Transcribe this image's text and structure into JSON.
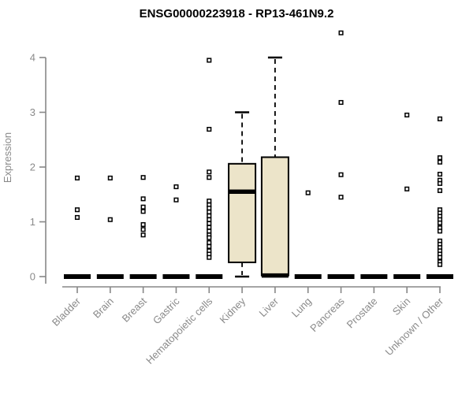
{
  "chart_data": {
    "type": "boxplot",
    "title": "ENSG00000223918 - RP13-461N9.2",
    "ylabel": "Expression",
    "xlabel": "",
    "ylim": [
      0,
      4
    ],
    "yticks": [
      0,
      1,
      2,
      3,
      4
    ],
    "grid": false,
    "legend": "none",
    "categories": [
      "Bladder",
      "Brain",
      "Breast",
      "Gastric",
      "Hematopoietic cells",
      "Kidney",
      "Liver",
      "Lung",
      "Pancreas",
      "Prostate",
      "Skin",
      "Unknown / Other"
    ],
    "boxes": [
      {
        "category": "Bladder",
        "q1": 0,
        "median": 0,
        "q3": 0,
        "whisker_low": 0,
        "whisker_high": 0,
        "outliers": [
          1.8,
          1.22,
          1.08
        ]
      },
      {
        "category": "Brain",
        "q1": 0,
        "median": 0,
        "q3": 0,
        "whisker_low": 0,
        "whisker_high": 0,
        "outliers": [
          1.8,
          1.04
        ]
      },
      {
        "category": "Breast",
        "q1": 0,
        "median": 0,
        "q3": 0,
        "whisker_low": 0,
        "whisker_high": 0,
        "outliers": [
          1.81,
          1.42,
          1.27,
          1.19,
          0.95,
          0.86,
          0.76
        ]
      },
      {
        "category": "Gastric",
        "q1": 0,
        "median": 0,
        "q3": 0,
        "whisker_low": 0,
        "whisker_high": 0,
        "outliers": [
          1.64,
          1.4
        ]
      },
      {
        "category": "Hematopoietic cells",
        "q1": 0,
        "median": 0,
        "q3": 0,
        "whisker_low": 0,
        "whisker_high": 0,
        "outliers": [
          3.95,
          2.69,
          1.91,
          1.81,
          1.38,
          1.31,
          1.25,
          1.18,
          1.11,
          1.04,
          0.97,
          0.9,
          0.83,
          0.76,
          0.71,
          0.62,
          0.55,
          0.47,
          0.41,
          0.35
        ]
      },
      {
        "category": "Kidney",
        "q1": 0.26,
        "median": 1.55,
        "q3": 2.06,
        "whisker_low": 0,
        "whisker_high": 3.0,
        "outliers": []
      },
      {
        "category": "Liver",
        "q1": 0.02,
        "median": 0.02,
        "q3": 2.18,
        "whisker_low": 0.02,
        "whisker_high": 4.0,
        "outliers": []
      },
      {
        "category": "Lung",
        "q1": 0,
        "median": 0,
        "q3": 0,
        "whisker_low": 0,
        "whisker_high": 0,
        "outliers": [
          1.53
        ]
      },
      {
        "category": "Pancreas",
        "q1": 0,
        "median": 0,
        "q3": 0,
        "whisker_low": 0,
        "whisker_high": 0,
        "outliers": [
          4.45,
          3.18,
          1.86,
          1.45
        ]
      },
      {
        "category": "Prostate",
        "q1": 0,
        "median": 0,
        "q3": 0,
        "whisker_low": 0,
        "whisker_high": 0,
        "outliers": []
      },
      {
        "category": "Skin",
        "q1": 0,
        "median": 0,
        "q3": 0,
        "whisker_low": 0,
        "whisker_high": 0,
        "outliers": [
          2.95,
          1.6
        ]
      },
      {
        "category": "Unknown / Other",
        "q1": 0,
        "median": 0,
        "q3": 0,
        "whisker_low": 0,
        "whisker_high": 0,
        "outliers": [
          2.88,
          2.17,
          2.09,
          1.87,
          1.76,
          1.7,
          1.57,
          1.22,
          1.16,
          1.1,
          1.04,
          0.98,
          0.89,
          0.83,
          0.65,
          0.59,
          0.53,
          0.47,
          0.41,
          0.35,
          0.27,
          0.22
        ]
      }
    ],
    "colors": {
      "box_fill": "#ECE4C9",
      "box_stroke": "#000000",
      "axis": "#878787",
      "tick_text": "#8A8A8A",
      "title_text": "#000000",
      "background": "#FFFFFF"
    }
  }
}
